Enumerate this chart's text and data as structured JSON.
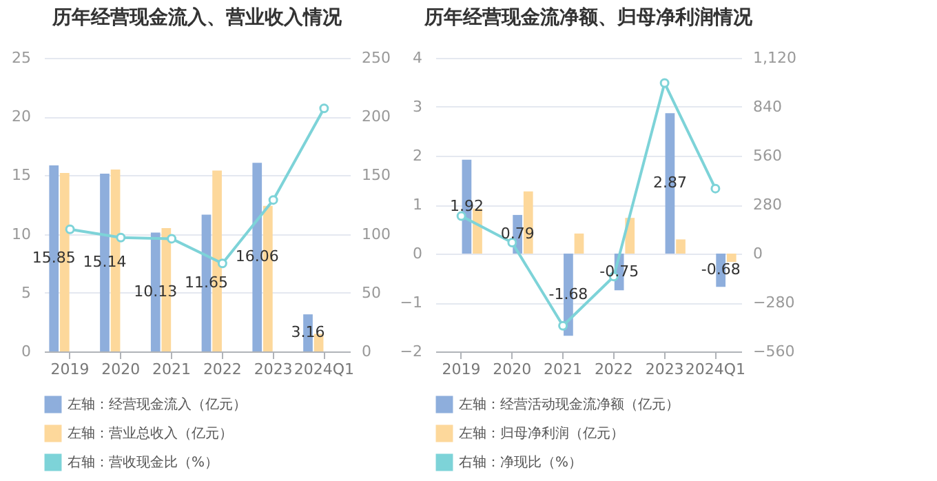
{
  "chart_data": [
    {
      "type": "bar",
      "title": "历年经营现金流入、营业收入情况",
      "categories": [
        "2019",
        "2020",
        "2021",
        "2022",
        "2023",
        "2024Q1"
      ],
      "series": [
        {
          "name": "左轴：经营现金流入（亿元）",
          "color": "#8eaedc",
          "values": [
            15.85,
            15.14,
            10.13,
            11.65,
            16.06,
            3.16
          ],
          "value_labels": [
            "15.85",
            "15.14",
            "10.13",
            "11.65",
            "16.06",
            "3.16"
          ]
        },
        {
          "name": "左轴：营业总收入（亿元）",
          "color": "#fdd89b",
          "values": [
            15.2,
            15.5,
            10.5,
            15.4,
            12.4,
            1.5
          ]
        },
        {
          "name": "右轴：营收现金比（%）",
          "type": "line",
          "axis": "y2",
          "color": "#7dd3d8",
          "marker": "circle",
          "values": [
            104,
            97,
            96,
            75,
            129,
            207
          ]
        }
      ],
      "ylim": [
        0,
        25
      ],
      "yticks": [
        0,
        5,
        10,
        15,
        20,
        25
      ],
      "y2lim": [
        0,
        250
      ],
      "y2ticks": [
        0,
        50,
        100,
        150,
        200,
        250
      ],
      "grid": "y",
      "legend": "bottom"
    },
    {
      "type": "bar",
      "title": "历年经营现金流净额、归母净利润情况",
      "categories": [
        "2019",
        "2020",
        "2021",
        "2022",
        "2023",
        "2024Q1"
      ],
      "series": [
        {
          "name": "左轴：经营活动现金流净额（亿元）",
          "color": "#8eaedc",
          "values": [
            1.92,
            0.79,
            -1.68,
            -0.75,
            2.87,
            -0.68
          ],
          "value_labels": [
            "1.92",
            "0.79",
            "-1.68",
            "-0.75",
            "2.87",
            "-0.68"
          ]
        },
        {
          "name": "左轴：归母净利润（亿元）",
          "color": "#fdd89b",
          "values": [
            0.92,
            1.27,
            0.41,
            0.73,
            0.29,
            -0.17
          ]
        },
        {
          "name": "右轴：净现比（%）",
          "type": "line",
          "axis": "y2",
          "color": "#7dd3d8",
          "marker": "circle",
          "values": [
            215,
            63,
            -413,
            -131,
            976,
            372
          ]
        }
      ],
      "ylim": [
        -2,
        4
      ],
      "yticks": [
        -2,
        -1,
        0,
        1,
        2,
        3,
        4
      ],
      "y2lim": [
        -560,
        1120
      ],
      "y2ticks": [
        -560,
        -280,
        0,
        280,
        560,
        840,
        {
          "value": 1120,
          "label": "1,120"
        }
      ],
      "grid": "y",
      "legend": "bottom"
    }
  ]
}
